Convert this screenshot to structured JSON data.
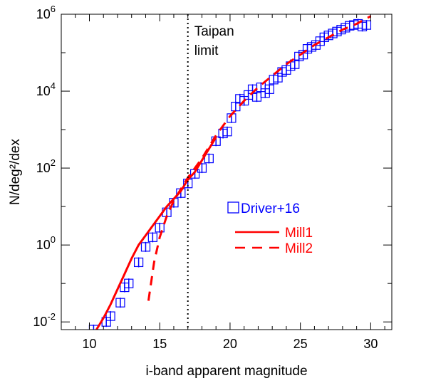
{
  "chart_data": {
    "type": "scatter",
    "xlabel": "i-band apparent magnitude",
    "ylabel": "N/deg²/dex",
    "xlim": [
      8,
      31.5
    ],
    "ylim_log10": [
      -2.2,
      6
    ],
    "yscale": "log",
    "x_ticks": [
      10,
      15,
      20,
      25,
      30
    ],
    "y_ticks": [
      {
        "base": "10",
        "exp": "-2",
        "log": -2
      },
      {
        "base": "10",
        "exp": "0",
        "log": 0
      },
      {
        "base": "10",
        "exp": "2",
        "log": 2
      },
      {
        "base": "10",
        "exp": "4",
        "log": 4
      },
      {
        "base": "10",
        "exp": "6",
        "log": 6
      }
    ],
    "annotation": {
      "lines": [
        "Taipan",
        "limit"
      ],
      "x": 17
    },
    "legend": {
      "placement": "right-center",
      "items": [
        {
          "label": "Driver+16",
          "style": "square",
          "color": "#0000ff"
        },
        {
          "label": "Mill1",
          "style": "solid",
          "color": "#ff0000"
        },
        {
          "label": "Mill2",
          "style": "dashed",
          "color": "#ff0000"
        }
      ]
    },
    "series": [
      {
        "name": "Driver+16",
        "style": "square",
        "color": "#0000ff",
        "points": [
          [
            10.3,
            -2.2
          ],
          [
            11.2,
            -2.0
          ],
          [
            11.5,
            -1.85
          ],
          [
            12.2,
            -1.5
          ],
          [
            12.5,
            -1.1
          ],
          [
            12.8,
            -1.0
          ],
          [
            13.5,
            -0.45
          ],
          [
            14.0,
            -0.05
          ],
          [
            14.5,
            0.2
          ],
          [
            15.0,
            0.45
          ],
          [
            15.5,
            0.85
          ],
          [
            16.0,
            1.1
          ],
          [
            16.5,
            1.35
          ],
          [
            17.0,
            1.6
          ],
          [
            17.5,
            1.85
          ],
          [
            18.0,
            2.0
          ],
          [
            18.5,
            2.25
          ],
          [
            19.0,
            2.7
          ],
          [
            19.5,
            2.9
          ],
          [
            19.8,
            2.95
          ],
          [
            20.1,
            3.3
          ],
          [
            20.4,
            3.6
          ],
          [
            20.7,
            3.8
          ],
          [
            21.0,
            3.75
          ],
          [
            21.3,
            3.9
          ],
          [
            21.6,
            4.05
          ],
          [
            21.9,
            3.85
          ],
          [
            22.2,
            4.1
          ],
          [
            22.5,
            3.95
          ],
          [
            22.8,
            4.05
          ],
          [
            23.1,
            4.3
          ],
          [
            23.4,
            4.35
          ],
          [
            23.7,
            4.5
          ],
          [
            24.0,
            4.55
          ],
          [
            24.3,
            4.65
          ],
          [
            24.6,
            4.7
          ],
          [
            24.9,
            4.9
          ],
          [
            25.2,
            4.95
          ],
          [
            25.5,
            5.1
          ],
          [
            25.8,
            5.15
          ],
          [
            26.1,
            5.2
          ],
          [
            26.4,
            5.3
          ],
          [
            26.7,
            5.4
          ],
          [
            27.0,
            5.45
          ],
          [
            27.3,
            5.5
          ],
          [
            27.6,
            5.55
          ],
          [
            27.9,
            5.6
          ],
          [
            28.2,
            5.65
          ],
          [
            28.5,
            5.7
          ],
          [
            28.8,
            5.72
          ],
          [
            29.1,
            5.75
          ],
          [
            29.4,
            5.68
          ],
          [
            29.7,
            5.72
          ]
        ]
      },
      {
        "name": "Mill1",
        "style": "solid",
        "color": "#ff0000",
        "points": [
          [
            10.5,
            -2.2
          ],
          [
            11.0,
            -1.9
          ],
          [
            11.5,
            -1.55
          ],
          [
            12.0,
            -1.15
          ],
          [
            12.5,
            -0.75
          ],
          [
            13.0,
            -0.35
          ],
          [
            13.5,
            0.0
          ],
          [
            14.0,
            0.25
          ],
          [
            14.5,
            0.5
          ],
          [
            15.0,
            0.75
          ],
          [
            15.5,
            1.0
          ],
          [
            16.0,
            1.2
          ],
          [
            16.5,
            1.4
          ],
          [
            17.0,
            1.7
          ],
          [
            17.5,
            1.9
          ],
          [
            18.0,
            2.2
          ],
          [
            18.5,
            2.5
          ],
          [
            19.0,
            2.8
          ]
        ]
      },
      {
        "name": "Mill2",
        "style": "dashed",
        "color": "#ff0000",
        "points": [
          [
            14.2,
            -1.45
          ],
          [
            14.6,
            -0.45
          ],
          [
            15.0,
            0.2
          ],
          [
            15.5,
            0.75
          ],
          [
            16.0,
            1.15
          ],
          [
            16.5,
            1.45
          ],
          [
            17.0,
            1.75
          ],
          [
            18.0,
            2.25
          ],
          [
            19.0,
            2.85
          ],
          [
            20.0,
            3.35
          ],
          [
            21.0,
            3.75
          ],
          [
            22.0,
            4.1
          ],
          [
            23.0,
            4.4
          ],
          [
            24.0,
            4.7
          ],
          [
            25.0,
            4.95
          ],
          [
            26.0,
            5.2
          ],
          [
            27.0,
            5.4
          ],
          [
            28.0,
            5.6
          ],
          [
            29.0,
            5.75
          ],
          [
            30.0,
            5.95
          ]
        ]
      }
    ]
  }
}
